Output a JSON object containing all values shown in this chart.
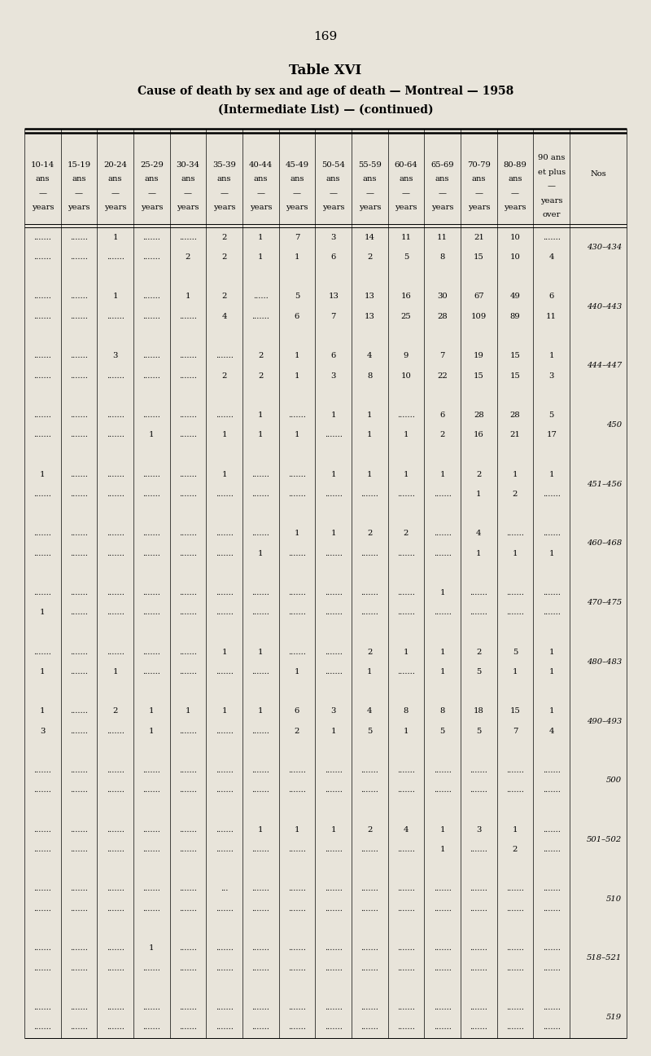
{
  "page_number": "169",
  "title1": "Table XVI",
  "title2": "Cause of death by sex and age of death — Montreal — 1958",
  "title3": "(Intermediate List) — (continued)",
  "bg_color": "#e8e4da",
  "rows": [
    {
      "nos": "430–434",
      "data": [
        [
          "",
          ""
        ],
        [
          "",
          ""
        ],
        [
          "1",
          ""
        ],
        [
          "",
          ""
        ],
        [
          "",
          "2"
        ],
        [
          "2",
          "2"
        ],
        [
          "1",
          "1"
        ],
        [
          "7",
          "1"
        ],
        [
          "3",
          "6"
        ],
        [
          "14",
          "2"
        ],
        [
          "11",
          "5"
        ],
        [
          "11",
          "8"
        ],
        [
          "21",
          "15"
        ],
        [
          "10",
          "10"
        ],
        [
          "",
          "4"
        ]
      ]
    },
    {
      "nos": "440–443",
      "data": [
        [
          "",
          ""
        ],
        [
          "",
          ""
        ],
        [
          "1",
          ""
        ],
        [
          "",
          ""
        ],
        [
          "1",
          ""
        ],
        [
          "2",
          "4"
        ],
        [
          "dot",
          ""
        ],
        [
          "5",
          "6"
        ],
        [
          "13",
          "7"
        ],
        [
          "13",
          "13"
        ],
        [
          "16",
          "25"
        ],
        [
          "30",
          "28"
        ],
        [
          "67",
          "109"
        ],
        [
          "49",
          "89"
        ],
        [
          "6",
          "11"
        ]
      ]
    },
    {
      "nos": "444–447",
      "data": [
        [
          "",
          ""
        ],
        [
          "",
          ""
        ],
        [
          "3",
          ""
        ],
        [
          "",
          ""
        ],
        [
          "",
          ""
        ],
        [
          "",
          "2"
        ],
        [
          "2",
          "2"
        ],
        [
          "1",
          "1"
        ],
        [
          "6",
          "3"
        ],
        [
          "4",
          "8"
        ],
        [
          "9",
          "10"
        ],
        [
          "7",
          "22"
        ],
        [
          "19",
          "15"
        ],
        [
          "15",
          "15"
        ],
        [
          "1",
          "3"
        ]
      ]
    },
    {
      "nos": "450",
      "data": [
        [
          "",
          ""
        ],
        [
          "",
          ""
        ],
        [
          "",
          ""
        ],
        [
          "",
          "1"
        ],
        [
          "",
          ""
        ],
        [
          "",
          "1"
        ],
        [
          "1",
          "1"
        ],
        [
          "",
          "1"
        ],
        [
          "1",
          ""
        ],
        [
          "1",
          "1"
        ],
        [
          "",
          "1"
        ],
        [
          "6",
          "2"
        ],
        [
          "28",
          "16"
        ],
        [
          "28",
          "21"
        ],
        [
          "5",
          "17"
        ]
      ]
    },
    {
      "nos": "451–456",
      "data": [
        [
          "1",
          ""
        ],
        [
          "",
          ""
        ],
        [
          "",
          ""
        ],
        [
          "",
          ""
        ],
        [
          "",
          ""
        ],
        [
          "1",
          ""
        ],
        [
          "",
          ""
        ],
        [
          "",
          ""
        ],
        [
          "1",
          ""
        ],
        [
          "1",
          ""
        ],
        [
          "1",
          ""
        ],
        [
          "1",
          ""
        ],
        [
          "2",
          "1"
        ],
        [
          "1",
          "2"
        ],
        [
          "1",
          ""
        ]
      ]
    },
    {
      "nos": "460–468",
      "data": [
        [
          "",
          ""
        ],
        [
          "",
          ""
        ],
        [
          "",
          ""
        ],
        [
          "",
          ""
        ],
        [
          "",
          ""
        ],
        [
          "",
          ""
        ],
        [
          "",
          "1"
        ],
        [
          "1",
          ""
        ],
        [
          "1",
          ""
        ],
        [
          "2",
          ""
        ],
        [
          "2",
          ""
        ],
        [
          "",
          ""
        ],
        [
          "4",
          "1"
        ],
        [
          "",
          "1"
        ],
        [
          "",
          "1"
        ]
      ]
    },
    {
      "nos": "470–475",
      "data": [
        [
          "",
          "1"
        ],
        [
          "",
          ""
        ],
        [
          "",
          ""
        ],
        [
          "",
          ""
        ],
        [
          "",
          ""
        ],
        [
          "",
          ""
        ],
        [
          "",
          ""
        ],
        [
          "",
          ""
        ],
        [
          "",
          ""
        ],
        [
          "",
          ""
        ],
        [
          "",
          ""
        ],
        [
          "1",
          ""
        ],
        [
          "",
          ""
        ],
        [
          "",
          ""
        ],
        [
          "",
          ""
        ]
      ]
    },
    {
      "nos": "480–483",
      "data": [
        [
          "",
          "1"
        ],
        [
          "",
          ""
        ],
        [
          "",
          "1"
        ],
        [
          "",
          ""
        ],
        [
          "",
          ""
        ],
        [
          "1",
          ""
        ],
        [
          "1",
          ""
        ],
        [
          "",
          "1"
        ],
        [
          "",
          ""
        ],
        [
          "2",
          "1"
        ],
        [
          "1",
          ""
        ],
        [
          "1",
          "1"
        ],
        [
          "2",
          "5"
        ],
        [
          "5",
          "1"
        ],
        [
          "1",
          "1"
        ]
      ]
    },
    {
      "nos": "490–493",
      "data": [
        [
          "1",
          "3"
        ],
        [
          "",
          ""
        ],
        [
          "2",
          ""
        ],
        [
          "1",
          "1"
        ],
        [
          "1",
          ""
        ],
        [
          "1",
          ""
        ],
        [
          "1",
          ""
        ],
        [
          "6",
          "2"
        ],
        [
          "3",
          "1"
        ],
        [
          "4",
          "5"
        ],
        [
          "8",
          "1"
        ],
        [
          "8",
          "5"
        ],
        [
          "18",
          "5"
        ],
        [
          "15",
          "7"
        ],
        [
          "1",
          "4"
        ]
      ]
    },
    {
      "nos": "500",
      "data": [
        [
          "",
          ""
        ],
        [
          "",
          ""
        ],
        [
          "",
          ""
        ],
        [
          "",
          ""
        ],
        [
          "",
          ""
        ],
        [
          "",
          ""
        ],
        [
          "",
          ""
        ],
        [
          "",
          ""
        ],
        [
          "",
          ""
        ],
        [
          "",
          ""
        ],
        [
          "",
          ""
        ],
        [
          "",
          ""
        ],
        [
          "",
          ""
        ],
        [
          "",
          ""
        ],
        [
          "",
          ""
        ]
      ]
    },
    {
      "nos": "501–502",
      "data": [
        [
          "",
          ""
        ],
        [
          "",
          ""
        ],
        [
          "",
          ""
        ],
        [
          "",
          ""
        ],
        [
          "",
          ""
        ],
        [
          "",
          ""
        ],
        [
          "1",
          ""
        ],
        [
          "1",
          ""
        ],
        [
          "1",
          ""
        ],
        [
          "2",
          ""
        ],
        [
          "4",
          ""
        ],
        [
          "1",
          "1"
        ],
        [
          "3",
          ""
        ],
        [
          "1",
          "2"
        ],
        [
          "",
          ""
        ]
      ]
    },
    {
      "nos": "510",
      "data": [
        [
          "",
          ""
        ],
        [
          "",
          ""
        ],
        [
          "",
          ""
        ],
        [
          "",
          ""
        ],
        [
          "",
          ""
        ],
        [
          "dot3",
          ""
        ],
        [
          "",
          ""
        ],
        [
          "",
          ""
        ],
        [
          "",
          ""
        ],
        [
          "",
          ""
        ],
        [
          "",
          ""
        ],
        [
          "",
          ""
        ],
        [
          "",
          ""
        ],
        [
          "",
          ""
        ],
        [
          "",
          ""
        ]
      ]
    },
    {
      "nos": "518–521",
      "data": [
        [
          "",
          ""
        ],
        [
          "",
          ""
        ],
        [
          "",
          ""
        ],
        [
          "1",
          ""
        ],
        [
          "",
          ""
        ],
        [
          "",
          ""
        ],
        [
          "",
          ""
        ],
        [
          "",
          ""
        ],
        [
          "",
          ""
        ],
        [
          "",
          ""
        ],
        [
          "",
          ""
        ],
        [
          "",
          ""
        ],
        [
          "",
          ""
        ],
        [
          "",
          ""
        ],
        [
          "",
          ""
        ]
      ]
    },
    {
      "nos": "519",
      "data": [
        [
          "",
          ""
        ],
        [
          "",
          ""
        ],
        [
          "",
          ""
        ],
        [
          "",
          ""
        ],
        [
          "",
          ""
        ],
        [
          "",
          ""
        ],
        [
          "",
          ""
        ],
        [
          "",
          ""
        ],
        [
          "",
          ""
        ],
        [
          "",
          ""
        ],
        [
          "",
          ""
        ],
        [
          "",
          ""
        ],
        [
          "",
          ""
        ],
        [
          "",
          ""
        ],
        [
          "",
          ""
        ]
      ]
    }
  ]
}
